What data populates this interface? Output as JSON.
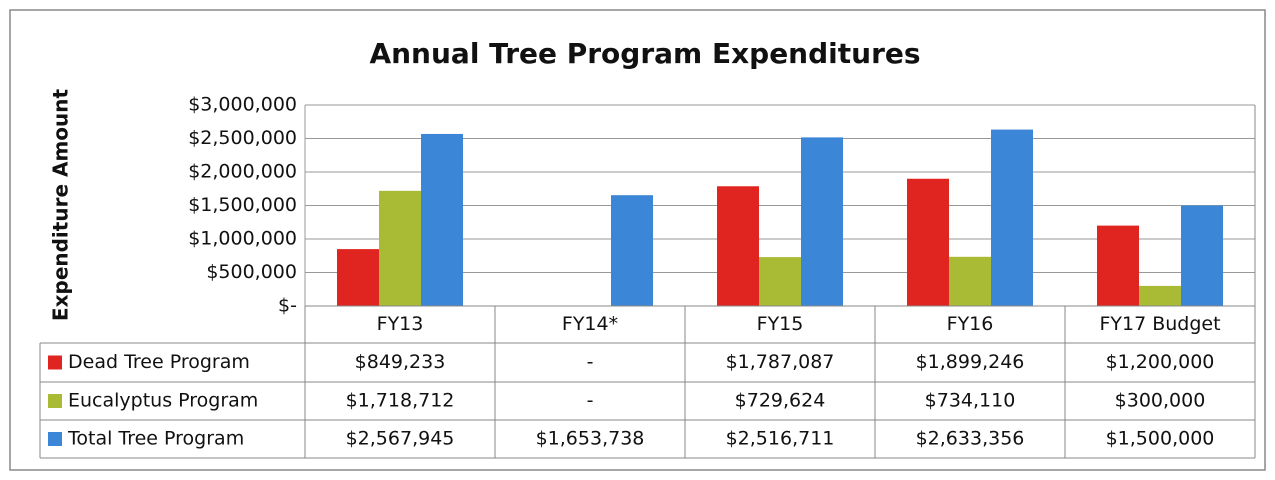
{
  "chart_data": {
    "type": "bar",
    "title": "Annual Tree Program Expenditures",
    "y_label": "Expenditure Amount",
    "categories": [
      "FY13",
      "FY14*",
      "FY15",
      "FY16",
      "FY17 Budget"
    ],
    "series": [
      {
        "name": "Dead Tree Program",
        "color": "#e02420",
        "values": [
          849233,
          null,
          1787087,
          1899246,
          1200000
        ],
        "value_labels": [
          "$849,233",
          "-",
          "$1,787,087",
          "$1,899,246",
          "$1,200,000"
        ]
      },
      {
        "name": "Eucalyptus Program",
        "color": "#a9bb34",
        "values": [
          1718712,
          null,
          729624,
          734110,
          300000
        ],
        "value_labels": [
          "$1,718,712",
          "-",
          "$729,624",
          "$734,110",
          "$300,000"
        ]
      },
      {
        "name": "Total Tree Program",
        "color": "#3b86d6",
        "values": [
          2567945,
          1653738,
          2516711,
          2633356,
          1500000
        ],
        "value_labels": [
          "$2,567,945",
          "$1,653,738",
          "$2,516,711",
          "$2,633,356",
          "$1,500,000"
        ]
      }
    ],
    "ylim": [
      0,
      3000000
    ],
    "yticks": [
      {
        "value": 0,
        "label": "$-"
      },
      {
        "value": 500000,
        "label": "$500,000"
      },
      {
        "value": 1000000,
        "label": "$1,000,000"
      },
      {
        "value": 1500000,
        "label": "$1,500,000"
      },
      {
        "value": 2000000,
        "label": "$2,000,000"
      },
      {
        "value": 2500000,
        "label": "$2,500,000"
      },
      {
        "value": 3000000,
        "label": "$3,000,000"
      }
    ],
    "grid": true
  }
}
